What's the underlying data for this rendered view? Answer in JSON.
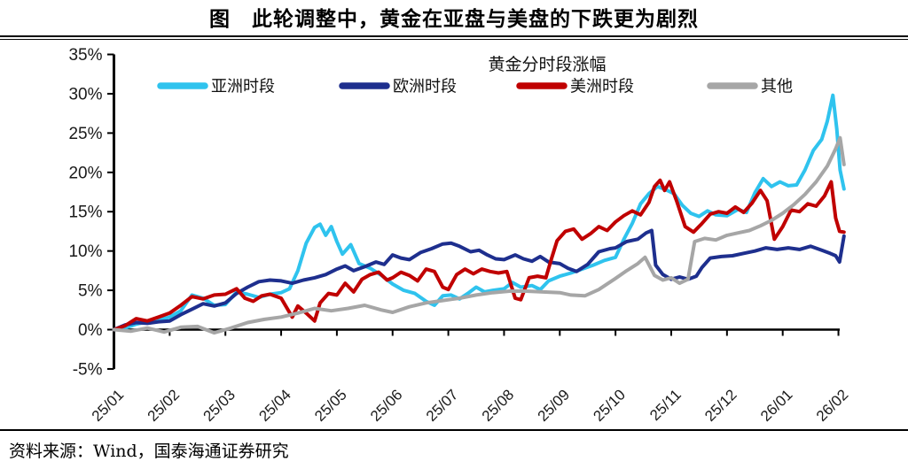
{
  "figure": {
    "title": "图　此轮调整中，黄金在亚盘与美盘的下跌更为剧烈",
    "source": "资料来源：Wind，国泰海通证券研究"
  },
  "chart_data": {
    "type": "line",
    "title": "黄金分时段涨幅",
    "x_tick_labels": [
      "25/01",
      "25/02",
      "25/03",
      "25/04",
      "25/05",
      "25/06",
      "25/07",
      "25/08",
      "25/09",
      "25/10",
      "25/11",
      "25/12",
      "26/01",
      "26/02"
    ],
    "x_note": "points given as [month_index, percent]; 0 = 25/01, 13 = 26/02",
    "y_ticks": [
      35,
      30,
      25,
      20,
      15,
      10,
      5,
      0,
      -5
    ],
    "y_tick_suffix": "%",
    "ylim": [
      -5,
      35
    ],
    "grid": false,
    "legend_position": "top",
    "axis_color": "#000000",
    "series": [
      {
        "name": "亚洲时段",
        "color": "#2FC3EE",
        "points": [
          [
            0,
            0
          ],
          [
            0.2,
            0.2
          ],
          [
            0.4,
            0.7
          ],
          [
            0.6,
            1.0
          ],
          [
            0.8,
            1.2
          ],
          [
            1,
            1.6
          ],
          [
            1.2,
            2.4
          ],
          [
            1.4,
            4.4
          ],
          [
            1.6,
            4.0
          ],
          [
            1.8,
            3.1
          ],
          [
            2,
            3.2
          ],
          [
            2.2,
            4.8
          ],
          [
            2.4,
            4.5
          ],
          [
            2.6,
            4.1
          ],
          [
            2.8,
            4.5
          ],
          [
            3,
            4.7
          ],
          [
            3.15,
            5.2
          ],
          [
            3.3,
            7.5
          ],
          [
            3.45,
            11.0
          ],
          [
            3.6,
            13.0
          ],
          [
            3.7,
            13.4
          ],
          [
            3.8,
            12.0
          ],
          [
            3.9,
            13.1
          ],
          [
            4,
            11.2
          ],
          [
            4.1,
            9.6
          ],
          [
            4.25,
            10.8
          ],
          [
            4.4,
            8.4
          ],
          [
            4.6,
            7.8
          ],
          [
            4.8,
            6.9
          ],
          [
            5,
            5.8
          ],
          [
            5.2,
            5.0
          ],
          [
            5.4,
            4.6
          ],
          [
            5.6,
            3.6
          ],
          [
            5.75,
            3.1
          ],
          [
            5.9,
            4.3
          ],
          [
            6.05,
            4.4
          ],
          [
            6.2,
            3.9
          ],
          [
            6.35,
            4.6
          ],
          [
            6.5,
            5.4
          ],
          [
            6.65,
            4.8
          ],
          [
            6.8,
            5.0
          ],
          [
            7,
            5.2
          ],
          [
            7.15,
            6.0
          ],
          [
            7.3,
            5.4
          ],
          [
            7.5,
            5.6
          ],
          [
            7.65,
            5.1
          ],
          [
            7.8,
            6.2
          ],
          [
            8,
            6.8
          ],
          [
            8.2,
            7.2
          ],
          [
            8.4,
            7.7
          ],
          [
            8.6,
            8.2
          ],
          [
            8.8,
            8.8
          ],
          [
            9,
            9.2
          ],
          [
            9.15,
            11.5
          ],
          [
            9.3,
            13.5
          ],
          [
            9.45,
            16.0
          ],
          [
            9.6,
            17.3
          ],
          [
            9.75,
            18.2
          ],
          [
            9.9,
            17.8
          ],
          [
            10.05,
            17.3
          ],
          [
            10.2,
            15.8
          ],
          [
            10.35,
            14.8
          ],
          [
            10.5,
            14.4
          ],
          [
            10.65,
            15.1
          ],
          [
            10.8,
            14.6
          ],
          [
            11,
            14.5
          ],
          [
            11.2,
            15.3
          ],
          [
            11.35,
            14.9
          ],
          [
            11.5,
            17.4
          ],
          [
            11.65,
            19.2
          ],
          [
            11.8,
            18.2
          ],
          [
            11.95,
            18.8
          ],
          [
            12.1,
            18.3
          ],
          [
            12.25,
            18.4
          ],
          [
            12.4,
            20.3
          ],
          [
            12.55,
            22.8
          ],
          [
            12.7,
            24.2
          ],
          [
            12.8,
            26.5
          ],
          [
            12.9,
            29.8
          ],
          [
            12.97,
            25.5
          ],
          [
            13.03,
            20.3
          ],
          [
            13.1,
            17.9
          ]
        ]
      },
      {
        "name": "欧洲时段",
        "color": "#1E2F8E",
        "points": [
          [
            0,
            0
          ],
          [
            0.2,
            0.6
          ],
          [
            0.4,
            0.9
          ],
          [
            0.6,
            0.8
          ],
          [
            0.8,
            1.0
          ],
          [
            1,
            1.1
          ],
          [
            1.2,
            1.9
          ],
          [
            1.4,
            2.6
          ],
          [
            1.6,
            3.3
          ],
          [
            1.8,
            3.0
          ],
          [
            2,
            3.4
          ],
          [
            2.2,
            4.6
          ],
          [
            2.4,
            5.4
          ],
          [
            2.6,
            6.1
          ],
          [
            2.8,
            6.3
          ],
          [
            3,
            6.2
          ],
          [
            3.2,
            5.9
          ],
          [
            3.4,
            6.3
          ],
          [
            3.6,
            6.6
          ],
          [
            3.8,
            7.0
          ],
          [
            4,
            7.7
          ],
          [
            4.15,
            8.1
          ],
          [
            4.3,
            7.5
          ],
          [
            4.5,
            8.0
          ],
          [
            4.7,
            8.6
          ],
          [
            4.85,
            8.3
          ],
          [
            5,
            9.5
          ],
          [
            5.15,
            9.1
          ],
          [
            5.3,
            8.9
          ],
          [
            5.5,
            9.8
          ],
          [
            5.7,
            10.3
          ],
          [
            5.9,
            10.9
          ],
          [
            6.05,
            11.0
          ],
          [
            6.2,
            10.6
          ],
          [
            6.4,
            9.9
          ],
          [
            6.55,
            10.1
          ],
          [
            6.7,
            9.5
          ],
          [
            6.85,
            9.0
          ],
          [
            7,
            8.9
          ],
          [
            7.2,
            9.5
          ],
          [
            7.35,
            9.0
          ],
          [
            7.5,
            8.7
          ],
          [
            7.65,
            9.3
          ],
          [
            7.8,
            8.6
          ],
          [
            8,
            8.4
          ],
          [
            8.15,
            7.8
          ],
          [
            8.3,
            7.4
          ],
          [
            8.5,
            8.3
          ],
          [
            8.7,
            9.9
          ],
          [
            8.9,
            10.3
          ],
          [
            9,
            10.4
          ],
          [
            9.2,
            11.2
          ],
          [
            9.4,
            11.5
          ],
          [
            9.55,
            12.3
          ],
          [
            9.65,
            12.6
          ],
          [
            9.72,
            8.2
          ],
          [
            9.85,
            7.0
          ],
          [
            10,
            6.4
          ],
          [
            10.15,
            6.7
          ],
          [
            10.3,
            6.4
          ],
          [
            10.45,
            6.8
          ],
          [
            10.55,
            7.9
          ],
          [
            10.7,
            9.1
          ],
          [
            10.9,
            9.3
          ],
          [
            11.1,
            9.4
          ],
          [
            11.3,
            9.7
          ],
          [
            11.5,
            10.0
          ],
          [
            11.7,
            10.4
          ],
          [
            11.9,
            10.2
          ],
          [
            12.1,
            10.4
          ],
          [
            12.3,
            10.2
          ],
          [
            12.5,
            10.6
          ],
          [
            12.7,
            10.1
          ],
          [
            12.85,
            9.7
          ],
          [
            12.95,
            9.4
          ],
          [
            13.02,
            8.6
          ],
          [
            13.1,
            11.9
          ]
        ]
      },
      {
        "name": "美洲时段",
        "color": "#C00000",
        "points": [
          [
            0,
            0
          ],
          [
            0.2,
            0.5
          ],
          [
            0.4,
            1.4
          ],
          [
            0.6,
            1.1
          ],
          [
            0.8,
            1.6
          ],
          [
            1,
            2.1
          ],
          [
            1.2,
            3.1
          ],
          [
            1.4,
            4.2
          ],
          [
            1.6,
            3.9
          ],
          [
            1.8,
            4.4
          ],
          [
            2,
            4.5
          ],
          [
            2.2,
            5.2
          ],
          [
            2.35,
            4.0
          ],
          [
            2.5,
            3.6
          ],
          [
            2.65,
            4.3
          ],
          [
            2.8,
            4.5
          ],
          [
            3,
            4.0
          ],
          [
            3.1,
            2.8
          ],
          [
            3.2,
            1.6
          ],
          [
            3.3,
            3.0
          ],
          [
            3.45,
            2.1
          ],
          [
            3.6,
            1.1
          ],
          [
            3.7,
            3.4
          ],
          [
            3.85,
            4.6
          ],
          [
            4,
            4.4
          ],
          [
            4.15,
            5.9
          ],
          [
            4.3,
            4.8
          ],
          [
            4.45,
            6.4
          ],
          [
            4.6,
            7.0
          ],
          [
            4.75,
            7.3
          ],
          [
            4.9,
            6.3
          ],
          [
            5,
            6.6
          ],
          [
            5.15,
            7.3
          ],
          [
            5.3,
            6.9
          ],
          [
            5.45,
            6.2
          ],
          [
            5.6,
            7.7
          ],
          [
            5.75,
            7.4
          ],
          [
            5.9,
            5.4
          ],
          [
            6,
            5.1
          ],
          [
            6.15,
            7.0
          ],
          [
            6.3,
            7.7
          ],
          [
            6.45,
            7.1
          ],
          [
            6.6,
            7.7
          ],
          [
            6.75,
            7.4
          ],
          [
            6.9,
            7.2
          ],
          [
            7.05,
            7.4
          ],
          [
            7.2,
            4.0
          ],
          [
            7.3,
            3.8
          ],
          [
            7.45,
            6.6
          ],
          [
            7.6,
            6.8
          ],
          [
            7.75,
            6.6
          ],
          [
            7.85,
            9.0
          ],
          [
            7.95,
            11.3
          ],
          [
            8.1,
            12.5
          ],
          [
            8.25,
            12.8
          ],
          [
            8.4,
            11.5
          ],
          [
            8.55,
            12.2
          ],
          [
            8.7,
            13.1
          ],
          [
            8.85,
            12.6
          ],
          [
            9,
            13.7
          ],
          [
            9.15,
            14.5
          ],
          [
            9.3,
            15.1
          ],
          [
            9.45,
            14.6
          ],
          [
            9.6,
            16.2
          ],
          [
            9.7,
            18.2
          ],
          [
            9.8,
            19.0
          ],
          [
            9.88,
            17.7
          ],
          [
            9.97,
            18.8
          ],
          [
            10.1,
            16.3
          ],
          [
            10.25,
            13.1
          ],
          [
            10.4,
            12.4
          ],
          [
            10.55,
            13.5
          ],
          [
            10.7,
            14.7
          ],
          [
            10.85,
            15.0
          ],
          [
            11,
            14.8
          ],
          [
            11.15,
            15.6
          ],
          [
            11.3,
            14.9
          ],
          [
            11.45,
            16.1
          ],
          [
            11.6,
            17.7
          ],
          [
            11.72,
            16.4
          ],
          [
            11.85,
            11.5
          ],
          [
            12,
            13.1
          ],
          [
            12.15,
            15.2
          ],
          [
            12.3,
            15.0
          ],
          [
            12.45,
            16.0
          ],
          [
            12.6,
            15.7
          ],
          [
            12.75,
            17.0
          ],
          [
            12.87,
            18.8
          ],
          [
            12.95,
            14.2
          ],
          [
            13.02,
            12.5
          ],
          [
            13.1,
            12.4
          ]
        ]
      },
      {
        "name": "其他",
        "color": "#A6A6A6",
        "points": [
          [
            0,
            0
          ],
          [
            0.3,
            -0.2
          ],
          [
            0.6,
            0.2
          ],
          [
            0.9,
            -0.3
          ],
          [
            1.2,
            0.3
          ],
          [
            1.5,
            0.4
          ],
          [
            1.8,
            -0.4
          ],
          [
            2.1,
            0.2
          ],
          [
            2.4,
            0.9
          ],
          [
            2.7,
            1.3
          ],
          [
            3,
            1.6
          ],
          [
            3.3,
            2.1
          ],
          [
            3.6,
            2.7
          ],
          [
            3.9,
            2.4
          ],
          [
            4.2,
            2.7
          ],
          [
            4.5,
            3.1
          ],
          [
            4.8,
            2.5
          ],
          [
            5,
            2.2
          ],
          [
            5.3,
            2.9
          ],
          [
            5.6,
            3.4
          ],
          [
            5.9,
            3.7
          ],
          [
            6.2,
            4.0
          ],
          [
            6.5,
            4.4
          ],
          [
            6.8,
            4.7
          ],
          [
            7.1,
            4.9
          ],
          [
            7.4,
            4.9
          ],
          [
            7.7,
            4.8
          ],
          [
            8,
            4.7
          ],
          [
            8.2,
            4.4
          ],
          [
            8.45,
            4.3
          ],
          [
            8.7,
            5.1
          ],
          [
            9,
            6.5
          ],
          [
            9.2,
            7.5
          ],
          [
            9.4,
            8.4
          ],
          [
            9.53,
            9.2
          ],
          [
            9.7,
            6.9
          ],
          [
            9.85,
            6.3
          ],
          [
            10,
            6.6
          ],
          [
            10.15,
            5.9
          ],
          [
            10.3,
            6.4
          ],
          [
            10.42,
            11.2
          ],
          [
            10.6,
            11.6
          ],
          [
            10.8,
            11.4
          ],
          [
            11,
            12.0
          ],
          [
            11.2,
            12.3
          ],
          [
            11.4,
            12.6
          ],
          [
            11.6,
            13.2
          ],
          [
            11.8,
            13.9
          ],
          [
            12,
            14.8
          ],
          [
            12.2,
            15.9
          ],
          [
            12.4,
            17.2
          ],
          [
            12.6,
            18.8
          ],
          [
            12.8,
            20.8
          ],
          [
            12.95,
            23.0
          ],
          [
            13.03,
            24.4
          ],
          [
            13.1,
            21.0
          ]
        ]
      }
    ]
  }
}
